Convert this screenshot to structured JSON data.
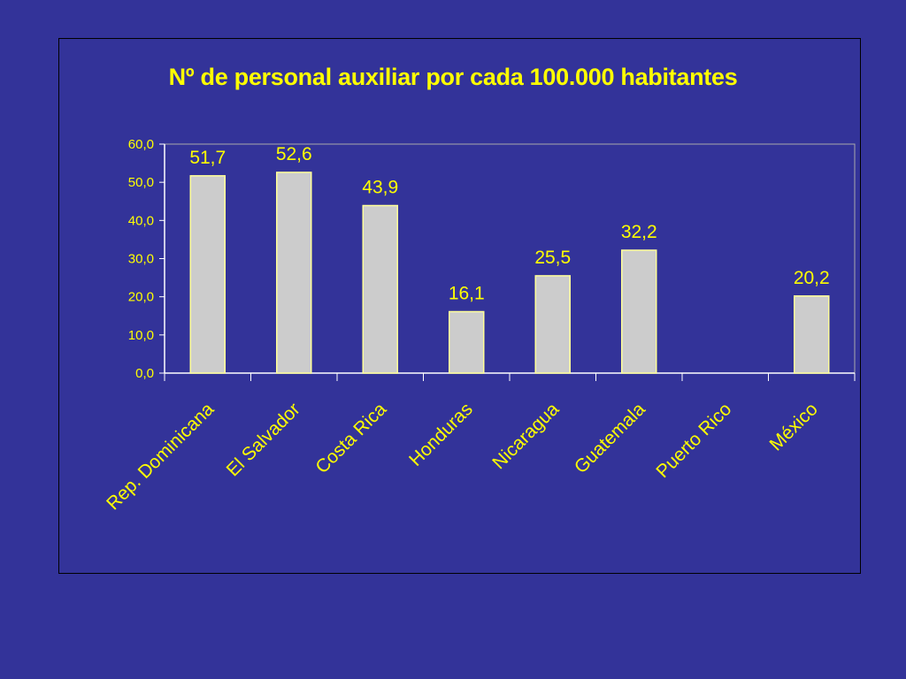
{
  "chart_data": {
    "type": "bar",
    "title": "Nº de personal auxiliar por cada 100.000 habitantes",
    "categories": [
      "Rep. Dominicana",
      "El Salvador",
      "Costa Rica",
      "Honduras",
      "Nicaragua",
      "Guatemala",
      "Puerto Rico",
      "México"
    ],
    "values": [
      51.7,
      52.6,
      43.9,
      16.1,
      25.5,
      32.2,
      null,
      20.2
    ],
    "data_labels": [
      "51,7",
      "52,6",
      "43,9",
      "16,1",
      "25,5",
      "32,2",
      "",
      "20,2"
    ],
    "y_ticks": [
      "0,0",
      "10,0",
      "20,0",
      "30,0",
      "40,0",
      "50,0",
      "60,0"
    ],
    "ylim": [
      0,
      60
    ],
    "xlabel": "",
    "ylabel": "",
    "grid": false,
    "legend": "none",
    "colors": {
      "background": "#333399",
      "bar_fill": "#CCCCCC",
      "bar_stroke": "#FFFF99",
      "text": "#FFFF00",
      "axis": "#FFFFFF"
    }
  }
}
